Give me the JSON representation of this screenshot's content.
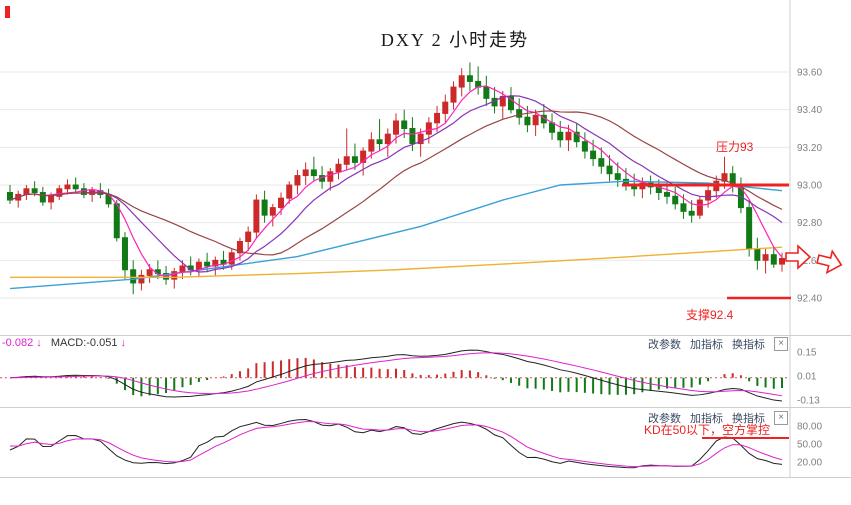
{
  "title": "DXY 2 小时走势",
  "colors": {
    "up": "#cc2a2a",
    "down": "#117a16",
    "accent_red": "#ee2222",
    "grid": "#e9e9e9",
    "separator": "#cfcfcf",
    "dif_line": "#222222",
    "dea_line": "#dd22cc",
    "k_line": "#222222",
    "d_line": "#dd22cc",
    "hist_up": "#cc2a2a",
    "hist_down": "#117a16",
    "axis_text": "#808080"
  },
  "annotations": {
    "resistance_label": "压力93",
    "resistance_level": 93.0,
    "support_label": "支撑92.4",
    "support_level": 92.4,
    "kd_note": "KD在50以下，空方掌控"
  },
  "macd_panel": {
    "dif_label": "-0.082",
    "dif_arrow": "↓",
    "macd_label": "MACD:-0.051",
    "macd_arrow": "↓",
    "toolbar": [
      "改参数",
      "加指标",
      "换指标"
    ],
    "close_icon": "×",
    "y_ticks": [
      {
        "v": 0.15,
        "label": "0.15"
      },
      {
        "v": 0.01,
        "label": "0.01"
      },
      {
        "v": -0.13,
        "label": "-0.13"
      }
    ]
  },
  "kd_panel": {
    "toolbar": [
      "改参数",
      "加指标",
      "换指标"
    ],
    "close_icon": "×",
    "y_ticks": [
      {
        "v": 80,
        "label": "80.00"
      },
      {
        "v": 50,
        "label": "50.00"
      },
      {
        "v": 20,
        "label": "20.00"
      }
    ]
  },
  "chart_data": {
    "type": "candlestick",
    "title": "DXY 2 小时走势",
    "ylim": [
      92.32,
      93.74
    ],
    "y_ticks": [
      {
        "v": 93.6,
        "label": "93.60"
      },
      {
        "v": 93.4,
        "label": "93.40"
      },
      {
        "v": 93.2,
        "label": "93.20"
      },
      {
        "v": 93.0,
        "label": "93.00"
      },
      {
        "v": 92.8,
        "label": "92.80"
      },
      {
        "v": 92.6,
        "label": "92.60"
      },
      {
        "v": 92.4,
        "label": "92.40"
      }
    ],
    "candles": [
      [
        92.96,
        93.0,
        92.9,
        92.92
      ],
      [
        92.92,
        92.97,
        92.88,
        92.95
      ],
      [
        92.95,
        93.0,
        92.92,
        92.98
      ],
      [
        92.98,
        93.02,
        92.94,
        92.96
      ],
      [
        92.96,
        92.99,
        92.89,
        92.91
      ],
      [
        92.91,
        92.96,
        92.87,
        92.94
      ],
      [
        92.94,
        93.0,
        92.92,
        92.98
      ],
      [
        92.98,
        93.03,
        92.95,
        93.0
      ],
      [
        93.0,
        93.04,
        92.96,
        92.98
      ],
      [
        92.98,
        93.01,
        92.93,
        92.95
      ],
      [
        92.95,
        92.99,
        92.91,
        92.97
      ],
      [
        92.97,
        93.01,
        92.93,
        92.95
      ],
      [
        92.95,
        92.98,
        92.88,
        92.9
      ],
      [
        92.9,
        92.92,
        92.7,
        92.72
      ],
      [
        92.72,
        92.75,
        92.5,
        92.55
      ],
      [
        92.55,
        92.6,
        92.42,
        92.48
      ],
      [
        92.48,
        92.55,
        92.44,
        92.52
      ],
      [
        92.52,
        92.58,
        92.48,
        92.55
      ],
      [
        92.55,
        92.6,
        92.5,
        92.53
      ],
      [
        92.53,
        92.57,
        92.47,
        92.5
      ],
      [
        92.5,
        92.56,
        92.45,
        92.54
      ],
      [
        92.54,
        92.6,
        92.5,
        92.57
      ],
      [
        92.57,
        92.62,
        92.52,
        92.55
      ],
      [
        92.55,
        92.61,
        92.51,
        92.59
      ],
      [
        92.59,
        92.64,
        92.54,
        92.57
      ],
      [
        92.57,
        92.62,
        92.52,
        92.6
      ],
      [
        92.6,
        92.65,
        92.55,
        92.58
      ],
      [
        92.58,
        92.66,
        92.55,
        92.64
      ],
      [
        92.64,
        92.72,
        92.6,
        92.7
      ],
      [
        92.7,
        92.78,
        92.65,
        92.75
      ],
      [
        92.75,
        92.95,
        92.72,
        92.92
      ],
      [
        92.92,
        92.97,
        92.8,
        92.84
      ],
      [
        92.84,
        92.9,
        92.78,
        92.88
      ],
      [
        92.88,
        92.96,
        92.84,
        92.93
      ],
      [
        92.93,
        93.02,
        92.9,
        93.0
      ],
      [
        93.0,
        93.08,
        92.95,
        93.05
      ],
      [
        93.05,
        93.12,
        93.0,
        93.08
      ],
      [
        93.08,
        93.15,
        93.02,
        93.05
      ],
      [
        93.05,
        93.1,
        92.98,
        93.02
      ],
      [
        93.02,
        93.09,
        92.97,
        93.07
      ],
      [
        93.07,
        93.14,
        93.03,
        93.11
      ],
      [
        93.11,
        93.3,
        93.08,
        93.15
      ],
      [
        93.15,
        93.22,
        93.08,
        93.12
      ],
      [
        93.12,
        93.2,
        93.05,
        93.18
      ],
      [
        93.18,
        93.28,
        93.14,
        93.24
      ],
      [
        93.24,
        93.35,
        93.18,
        93.22
      ],
      [
        93.22,
        93.3,
        93.15,
        93.27
      ],
      [
        93.27,
        93.38,
        93.22,
        93.34
      ],
      [
        93.34,
        93.4,
        93.25,
        93.3
      ],
      [
        93.3,
        93.36,
        93.18,
        93.22
      ],
      [
        93.22,
        93.3,
        93.15,
        93.27
      ],
      [
        93.27,
        93.36,
        93.22,
        93.33
      ],
      [
        93.33,
        93.42,
        93.28,
        93.38
      ],
      [
        93.38,
        93.48,
        93.33,
        93.44
      ],
      [
        93.44,
        93.55,
        93.4,
        93.52
      ],
      [
        93.52,
        93.62,
        93.47,
        93.58
      ],
      [
        93.58,
        93.65,
        93.5,
        93.55
      ],
      [
        93.55,
        93.63,
        93.48,
        93.52
      ],
      [
        93.52,
        93.58,
        93.42,
        93.46
      ],
      [
        93.46,
        93.52,
        93.38,
        93.42
      ],
      [
        93.42,
        93.5,
        93.35,
        93.47
      ],
      [
        93.47,
        93.52,
        93.38,
        93.4
      ],
      [
        93.4,
        93.46,
        93.32,
        93.36
      ],
      [
        93.36,
        93.42,
        93.28,
        93.32
      ],
      [
        93.32,
        93.4,
        93.26,
        93.37
      ],
      [
        93.37,
        93.43,
        93.3,
        93.33
      ],
      [
        93.33,
        93.38,
        93.24,
        93.28
      ],
      [
        93.28,
        93.34,
        93.2,
        93.24
      ],
      [
        93.24,
        93.32,
        93.18,
        93.28
      ],
      [
        93.28,
        93.33,
        93.2,
        93.23
      ],
      [
        93.23,
        93.28,
        93.14,
        93.18
      ],
      [
        93.18,
        93.24,
        93.1,
        93.14
      ],
      [
        93.14,
        93.2,
        93.06,
        93.1
      ],
      [
        93.1,
        93.16,
        93.02,
        93.06
      ],
      [
        93.06,
        93.12,
        92.99,
        93.03
      ],
      [
        93.03,
        93.09,
        92.97,
        93.0
      ],
      [
        93.0,
        93.06,
        92.94,
        92.98
      ],
      [
        92.98,
        93.04,
        92.93,
        93.01
      ],
      [
        93.01,
        93.05,
        92.95,
        92.99
      ],
      [
        92.99,
        93.03,
        92.92,
        92.96
      ],
      [
        92.96,
        93.01,
        92.9,
        92.94
      ],
      [
        92.94,
        92.99,
        92.87,
        92.9
      ],
      [
        92.9,
        92.95,
        92.82,
        92.86
      ],
      [
        92.86,
        92.92,
        92.8,
        92.84
      ],
      [
        92.84,
        92.94,
        92.82,
        92.92
      ],
      [
        92.92,
        93.0,
        92.88,
        92.97
      ],
      [
        92.97,
        93.05,
        92.93,
        93.02
      ],
      [
        93.02,
        93.15,
        92.98,
        93.06
      ],
      [
        93.06,
        93.1,
        92.96,
        93.0
      ],
      [
        93.0,
        93.04,
        92.85,
        92.88
      ],
      [
        92.88,
        92.92,
        92.62,
        92.66
      ],
      [
        92.66,
        92.72,
        92.55,
        92.6
      ],
      [
        92.6,
        92.66,
        92.53,
        92.63
      ],
      [
        92.63,
        92.67,
        92.56,
        92.58
      ],
      [
        92.58,
        92.64,
        92.54,
        92.61
      ]
    ],
    "ma_overlays": [
      {
        "name": "MA5",
        "period": 5,
        "color": "#ff22bb"
      },
      {
        "name": "MA10",
        "period": 10,
        "color": "#8833bb"
      },
      {
        "name": "MA20",
        "period": 20,
        "color": "#994444"
      }
    ],
    "long_ma_overlays": [
      {
        "name": "MA-long-blue",
        "color": "#3aa0d8",
        "points": [
          [
            0,
            92.45
          ],
          [
            15,
            92.5
          ],
          [
            35,
            92.62
          ],
          [
            50,
            92.78
          ],
          [
            60,
            92.92
          ],
          [
            67,
            93.0
          ],
          [
            75,
            93.02
          ],
          [
            85,
            93.01
          ],
          [
            94,
            92.97
          ]
        ]
      },
      {
        "name": "MA-long-orange",
        "color": "#f0b030",
        "points": [
          [
            0,
            92.51
          ],
          [
            20,
            92.51
          ],
          [
            35,
            92.53
          ],
          [
            47,
            92.55
          ],
          [
            60,
            92.58
          ],
          [
            72,
            92.61
          ],
          [
            83,
            92.64
          ],
          [
            94,
            92.67
          ]
        ]
      }
    ],
    "indicators": {
      "macd": {
        "fast": 12,
        "slow": 26,
        "signal": 9
      },
      "kd": {
        "period": 9,
        "k_smooth": 3,
        "d_smooth": 3
      }
    }
  }
}
